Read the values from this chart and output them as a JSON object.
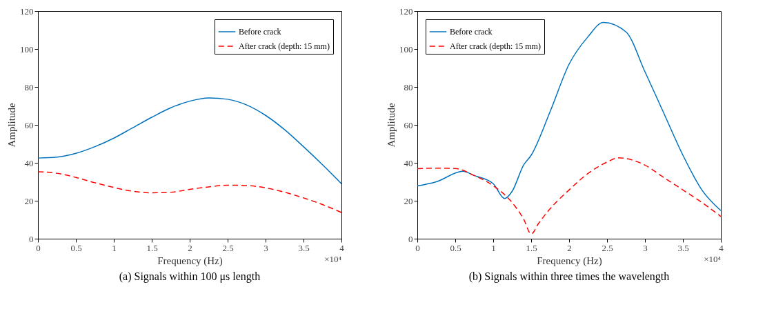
{
  "chart_data": [
    {
      "type": "line",
      "title": "(a) Signals within 100 μs length",
      "xlabel": "Frequency (Hz)",
      "ylabel": "Amplitude",
      "annotations": [
        "×10⁴"
      ],
      "xlim": [
        0,
        4
      ],
      "xticks": [
        0,
        0.5,
        1,
        1.5,
        2,
        2.5,
        3,
        3.5,
        4
      ],
      "ylim": [
        0,
        120
      ],
      "yticks": [
        0,
        20,
        40,
        60,
        80,
        100,
        120
      ],
      "grid": false,
      "legend": "top right",
      "series": [
        {
          "name": "Before crack",
          "color": "#0072bd",
          "line_style": "solid",
          "x": [
            0,
            0.25,
            0.5,
            0.75,
            1,
            1.25,
            1.5,
            1.75,
            2,
            2.25,
            2.5,
            2.75,
            3,
            3.25,
            3.5,
            3.75,
            4
          ],
          "values": [
            42.5,
            43,
            45,
            48.5,
            53,
            58.5,
            64,
            69,
            72.5,
            74.2,
            73.5,
            70.5,
            65,
            57.5,
            48.5,
            39,
            29
          ]
        },
        {
          "name": "After crack (depth: 15 mm)",
          "color": "#ff0000",
          "line_style": "dashed",
          "x": [
            0,
            0.25,
            0.5,
            0.75,
            1,
            1.25,
            1.5,
            1.75,
            2,
            2.25,
            2.5,
            2.75,
            3,
            3.25,
            3.5,
            3.75,
            4
          ],
          "values": [
            35.3,
            34.5,
            32.3,
            29.5,
            27,
            25,
            24.2,
            24.5,
            26,
            27.3,
            28.2,
            28,
            26.8,
            24.5,
            21.5,
            18,
            13.8
          ]
        }
      ]
    },
    {
      "type": "line",
      "title": "(b) Signals within three times the wavelength",
      "xlabel": "Frequency (Hz)",
      "ylabel": "Amplitude",
      "annotations": [
        "×10⁴"
      ],
      "xlim": [
        0,
        4
      ],
      "xticks": [
        0,
        0.5,
        1,
        1.5,
        2,
        2.5,
        3,
        3.5,
        4
      ],
      "ylim": [
        0,
        120
      ],
      "yticks": [
        0,
        20,
        40,
        60,
        80,
        100,
        120
      ],
      "grid": false,
      "legend": "top left",
      "series": [
        {
          "name": "Before crack",
          "color": "#0072bd",
          "line_style": "solid",
          "x": [
            0,
            0.25,
            0.6,
            0.75,
            1,
            1.15,
            1.25,
            1.4,
            1.5,
            1.75,
            2,
            2.25,
            2.45,
            2.75,
            3,
            3.25,
            3.5,
            3.75,
            4
          ],
          "values": [
            27.8,
            30,
            35.5,
            33.3,
            29,
            21.2,
            25,
            38.8,
            44,
            67,
            92,
            106.5,
            114,
            109,
            88,
            66,
            44,
            25.7,
            14.8
          ]
        },
        {
          "name": "After crack (depth: 15 mm)",
          "color": "#ff0000",
          "line_style": "dashed",
          "x": [
            0,
            0.25,
            0.5,
            0.75,
            1,
            1.25,
            1.4,
            1.5,
            1.6,
            1.75,
            2,
            2.25,
            2.5,
            2.65,
            3,
            3.25,
            3.5,
            3.75,
            4
          ],
          "values": [
            36.9,
            37.2,
            37,
            33.3,
            27.9,
            19,
            10.4,
            2.5,
            8.2,
            15.8,
            25.7,
            34.4,
            40.4,
            42.6,
            38.8,
            32.2,
            25.7,
            19.1,
            11.7
          ]
        }
      ]
    }
  ]
}
